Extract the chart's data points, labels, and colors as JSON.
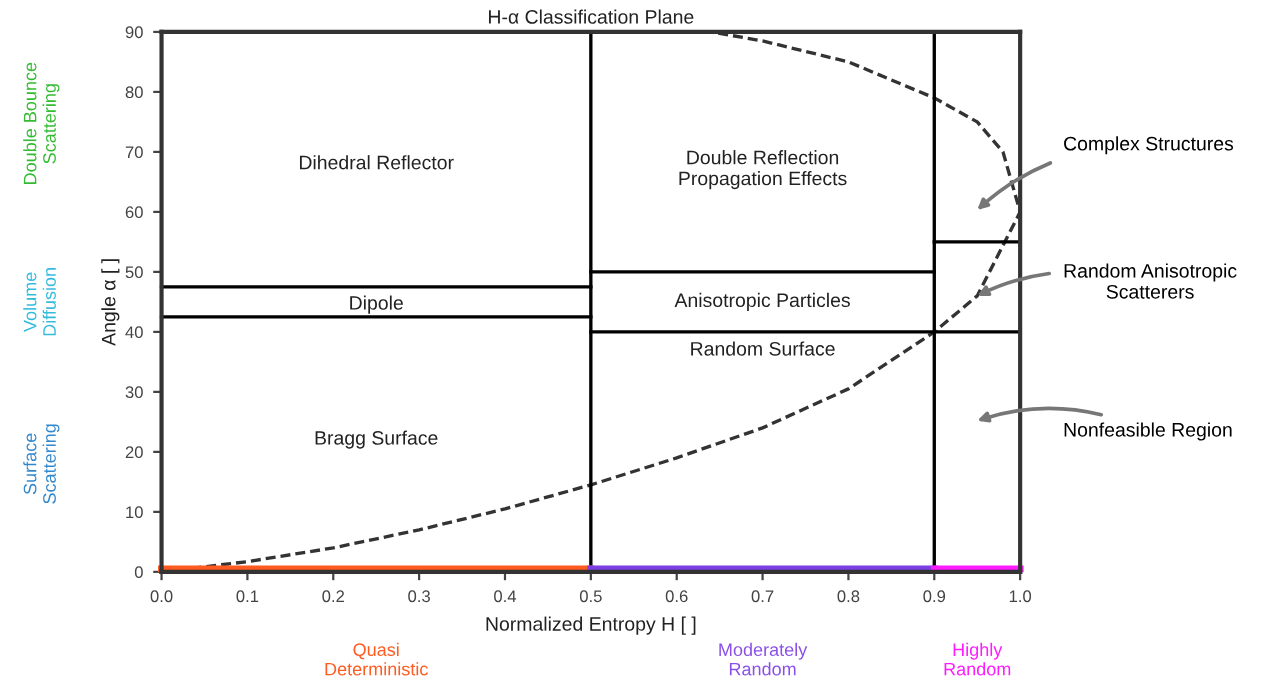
{
  "chart_data": {
    "type": "line",
    "title": "H-α Classification Plane",
    "xlabel": "Normalized Entropy H [ ]",
    "ylabel": "Angle α [ ]",
    "xlim": [
      0,
      1
    ],
    "ylim": [
      0,
      90
    ],
    "xticks": [
      {
        "value": 0,
        "label": "0.0"
      },
      0.1,
      0.2,
      0.3,
      0.4,
      0.5,
      0.6,
      0.7,
      0.8,
      0.9,
      {
        "value": 1,
        "label": "1.0"
      }
    ],
    "yticks": [
      0,
      10,
      20,
      30,
      40,
      50,
      60,
      70,
      80,
      90
    ],
    "grid": false,
    "legend": false,
    "marker": "none",
    "series": [
      {
        "color": "#333333",
        "line_style": "dashed",
        "x": [
          0,
          0.1,
          0.2,
          0.3,
          0.4,
          0.5,
          0.6,
          0.7,
          0.8,
          0.9,
          0.95,
          1.0,
          0.98,
          0.95,
          0.9,
          0.8,
          0.7,
          0.64
        ],
        "values": [
          0,
          1.7,
          4,
          7,
          10.5,
          14.5,
          19,
          24,
          30.5,
          40,
          46,
          60,
          70,
          75,
          79,
          85,
          88.5,
          90
        ]
      },
      {
        "color": "#000000",
        "line_style": "solid",
        "x": [
          0.5,
          0.5
        ],
        "values": [
          0,
          90
        ]
      },
      {
        "color": "#000000",
        "line_style": "solid",
        "x": [
          0.9,
          0.9
        ],
        "values": [
          0,
          90
        ]
      },
      {
        "color": "#000000",
        "line_style": "solid",
        "x": [
          0,
          0.5
        ],
        "values": [
          47.5,
          47.5
        ]
      },
      {
        "color": "#000000",
        "line_style": "solid",
        "x": [
          0,
          0.5
        ],
        "values": [
          42.5,
          42.5
        ]
      },
      {
        "color": "#000000",
        "line_style": "solid",
        "x": [
          0.5,
          0.9
        ],
        "values": [
          50,
          50
        ]
      },
      {
        "color": "#000000",
        "line_style": "solid",
        "x": [
          0.5,
          1.0
        ],
        "values": [
          40,
          40
        ]
      },
      {
        "color": "#000000",
        "line_style": "solid",
        "x": [
          0.9,
          1.0
        ],
        "values": [
          55,
          55
        ]
      },
      {
        "color": "#ff5a1f",
        "line_style": "solid",
        "x": [
          0,
          0.5
        ],
        "values": [
          0.5,
          0.5
        ]
      },
      {
        "color": "#7b3fe4",
        "line_style": "solid",
        "x": [
          0.5,
          0.9
        ],
        "values": [
          0.5,
          0.5
        ]
      },
      {
        "color": "#ff1aff",
        "line_style": "solid",
        "x": [
          0.9,
          1.0
        ],
        "values": [
          0.5,
          0.5
        ]
      }
    ],
    "annotations": [
      "Dihedral Reflector",
      "Double Reflection\nPropagation Effects",
      "Dipole",
      "Anisotropic Particles",
      "Random Surface",
      "Bragg Surface",
      "Complex Structures",
      {
        "text": "Random Anisotropic\nScatterers",
        "x": 0.95,
        "y": 46
      },
      "Nonfeasible Region",
      "Double Bounce\nScattering",
      "Volume\nDiffusion",
      "Surface\nScattering",
      "Quasi\nDeterministic",
      "Moderately\nRandom",
      "Highly\nRandom"
    ]
  }
}
